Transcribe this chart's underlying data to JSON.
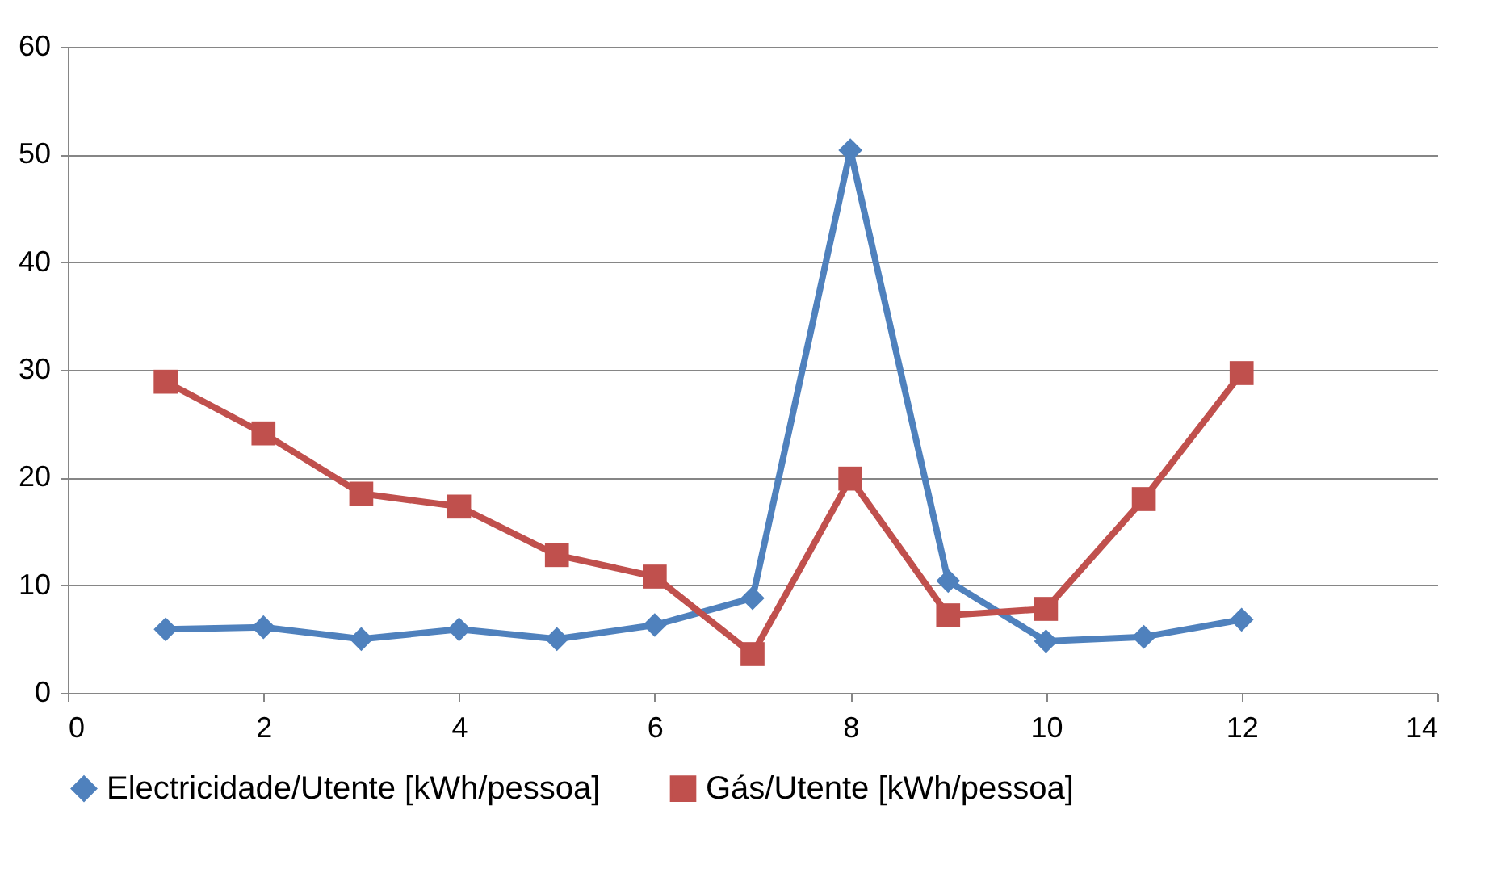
{
  "chart_data": {
    "type": "line",
    "x": [
      1,
      2,
      3,
      4,
      5,
      6,
      7,
      8,
      9,
      10,
      11,
      12
    ],
    "series": [
      {
        "name": "Electricidade/Utente [kWh/pessoa]",
        "color": "#4f81bd",
        "marker": "diamond",
        "values": [
          5.9,
          6.1,
          5.0,
          5.9,
          5.0,
          6.3,
          8.8,
          50.4,
          10.4,
          4.8,
          5.2,
          6.8
        ]
      },
      {
        "name": "Gás/Utente [kWh/pessoa]",
        "color": "#c0504d",
        "marker": "square",
        "values": [
          28.9,
          24.1,
          18.5,
          17.3,
          12.8,
          10.8,
          3.6,
          19.9,
          7.2,
          7.8,
          18.0,
          29.7
        ]
      }
    ],
    "xlim": [
      0,
      14
    ],
    "xticks": [
      0,
      2,
      4,
      6,
      8,
      10,
      12,
      14
    ],
    "ylim": [
      0,
      60
    ],
    "yticks": [
      0,
      10,
      20,
      30,
      40,
      50,
      60
    ],
    "grid": "y",
    "legend": "bottom",
    "line_style": "solid"
  }
}
